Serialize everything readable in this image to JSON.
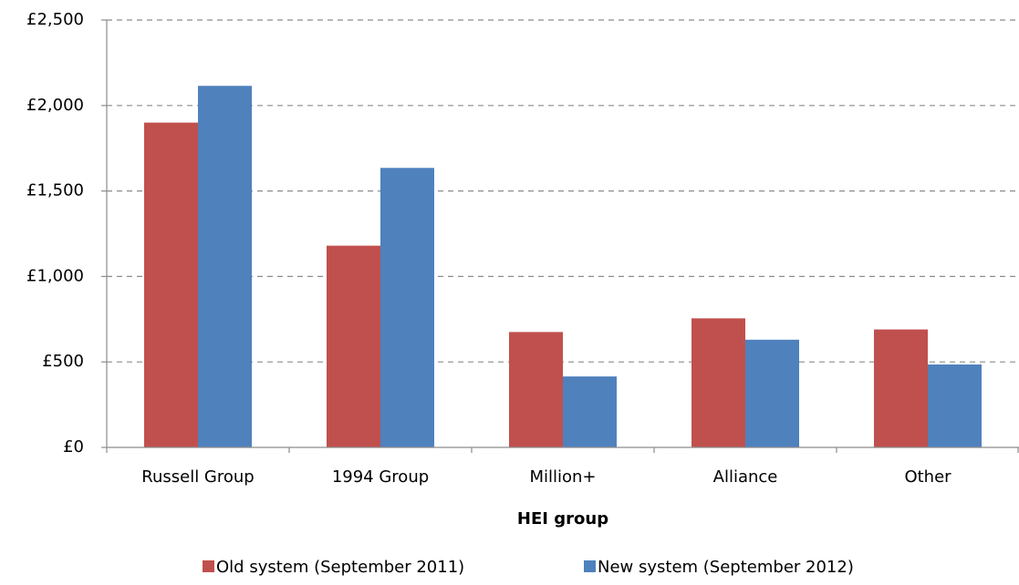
{
  "chart_data": {
    "type": "bar",
    "x_label": "HEI group",
    "categories": [
      "Russell Group",
      "1994 Group",
      "Million+",
      "Alliance",
      "Other"
    ],
    "series": [
      {
        "name": "Old system (September 2011)",
        "color": "#c0504d",
        "values": [
          1900,
          1180,
          675,
          755,
          690
        ]
      },
      {
        "name": "New system (September 2012)",
        "color": "#4f81bd",
        "values": [
          2115,
          1635,
          415,
          630,
          485
        ]
      }
    ],
    "ylim": [
      0,
      2500
    ],
    "yticks": [
      {
        "value": 0,
        "label": "£0"
      },
      {
        "value": 500,
        "label": "£500"
      },
      {
        "value": 1000,
        "label": "£1,000"
      },
      {
        "value": 1500,
        "label": "£1,500"
      },
      {
        "value": 2000,
        "label": "£2,000"
      },
      {
        "value": 2500,
        "label": "£2,500"
      }
    ],
    "grid": true,
    "legend": "bottom"
  }
}
